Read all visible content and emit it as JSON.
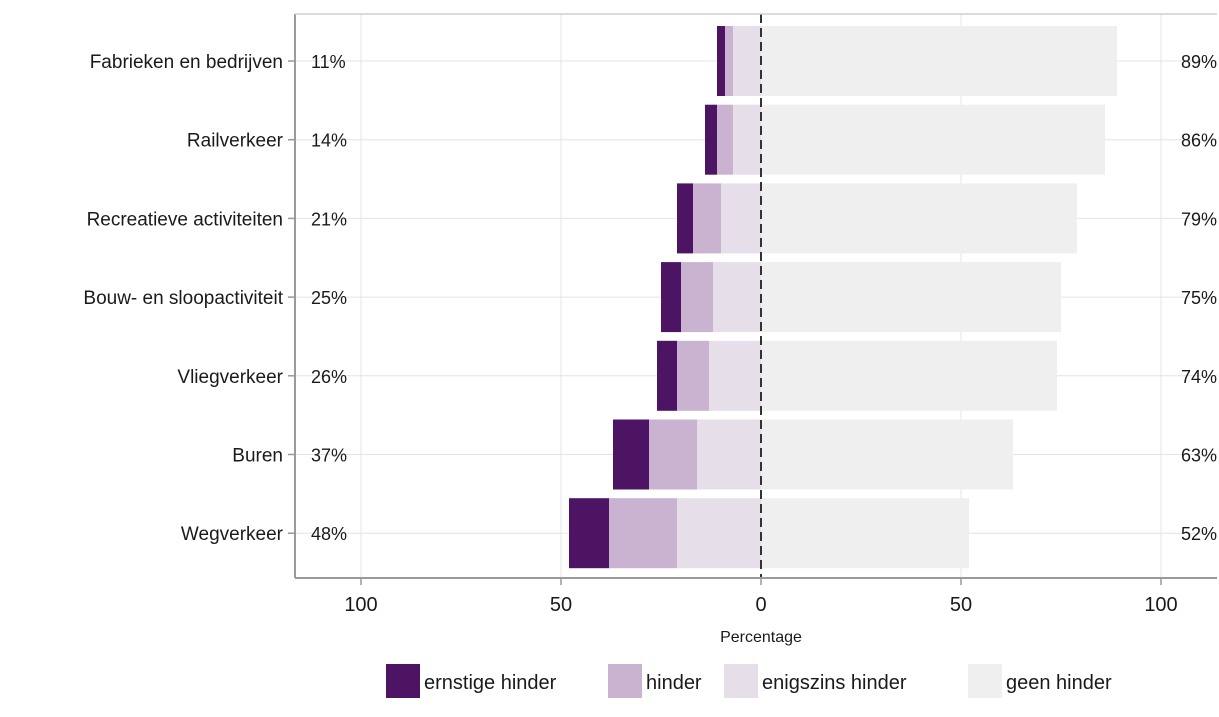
{
  "chart_data": {
    "type": "bar",
    "orientation": "horizontal",
    "diverging": true,
    "categories": [
      "Fabrieken en bedrijven",
      "Railverkeer",
      "Recreatieve activiteiten",
      "Bouw- en sloopactiviteit",
      "Vliegverkeer",
      "Buren",
      "Wegverkeer"
    ],
    "series": [
      {
        "name": "ernstige hinder",
        "color": "#4d1463",
        "side": "left",
        "values": [
          2,
          3,
          4,
          5,
          5,
          9,
          10
        ]
      },
      {
        "name": "hinder",
        "color": "#c9b3d0",
        "side": "left",
        "values": [
          2,
          4,
          7,
          8,
          8,
          12,
          17
        ]
      },
      {
        "name": "enigszins hinder",
        "color": "#e6dfea",
        "side": "left",
        "values": [
          7,
          7,
          10,
          12,
          13,
          16,
          21
        ]
      },
      {
        "name": "geen hinder",
        "color": "#efefef",
        "side": "right",
        "values": [
          89,
          86,
          79,
          75,
          74,
          63,
          52
        ]
      }
    ],
    "left_totals": [
      "11%",
      "14%",
      "21%",
      "25%",
      "26%",
      "37%",
      "48%"
    ],
    "right_totals": [
      "89%",
      "86%",
      "79%",
      "75%",
      "74%",
      "63%",
      "52%"
    ],
    "xlim": [
      -100,
      100
    ],
    "x_ticks": [
      {
        "value": -100,
        "label": "100"
      },
      {
        "value": -50,
        "label": "50"
      },
      {
        "value": 0,
        "label": "0"
      },
      {
        "value": 50,
        "label": "50"
      },
      {
        "value": 100,
        "label": "100"
      }
    ],
    "xlabel": "Percentage",
    "ylabel": "",
    "title": "",
    "grid": true,
    "legend_position": "bottom"
  }
}
